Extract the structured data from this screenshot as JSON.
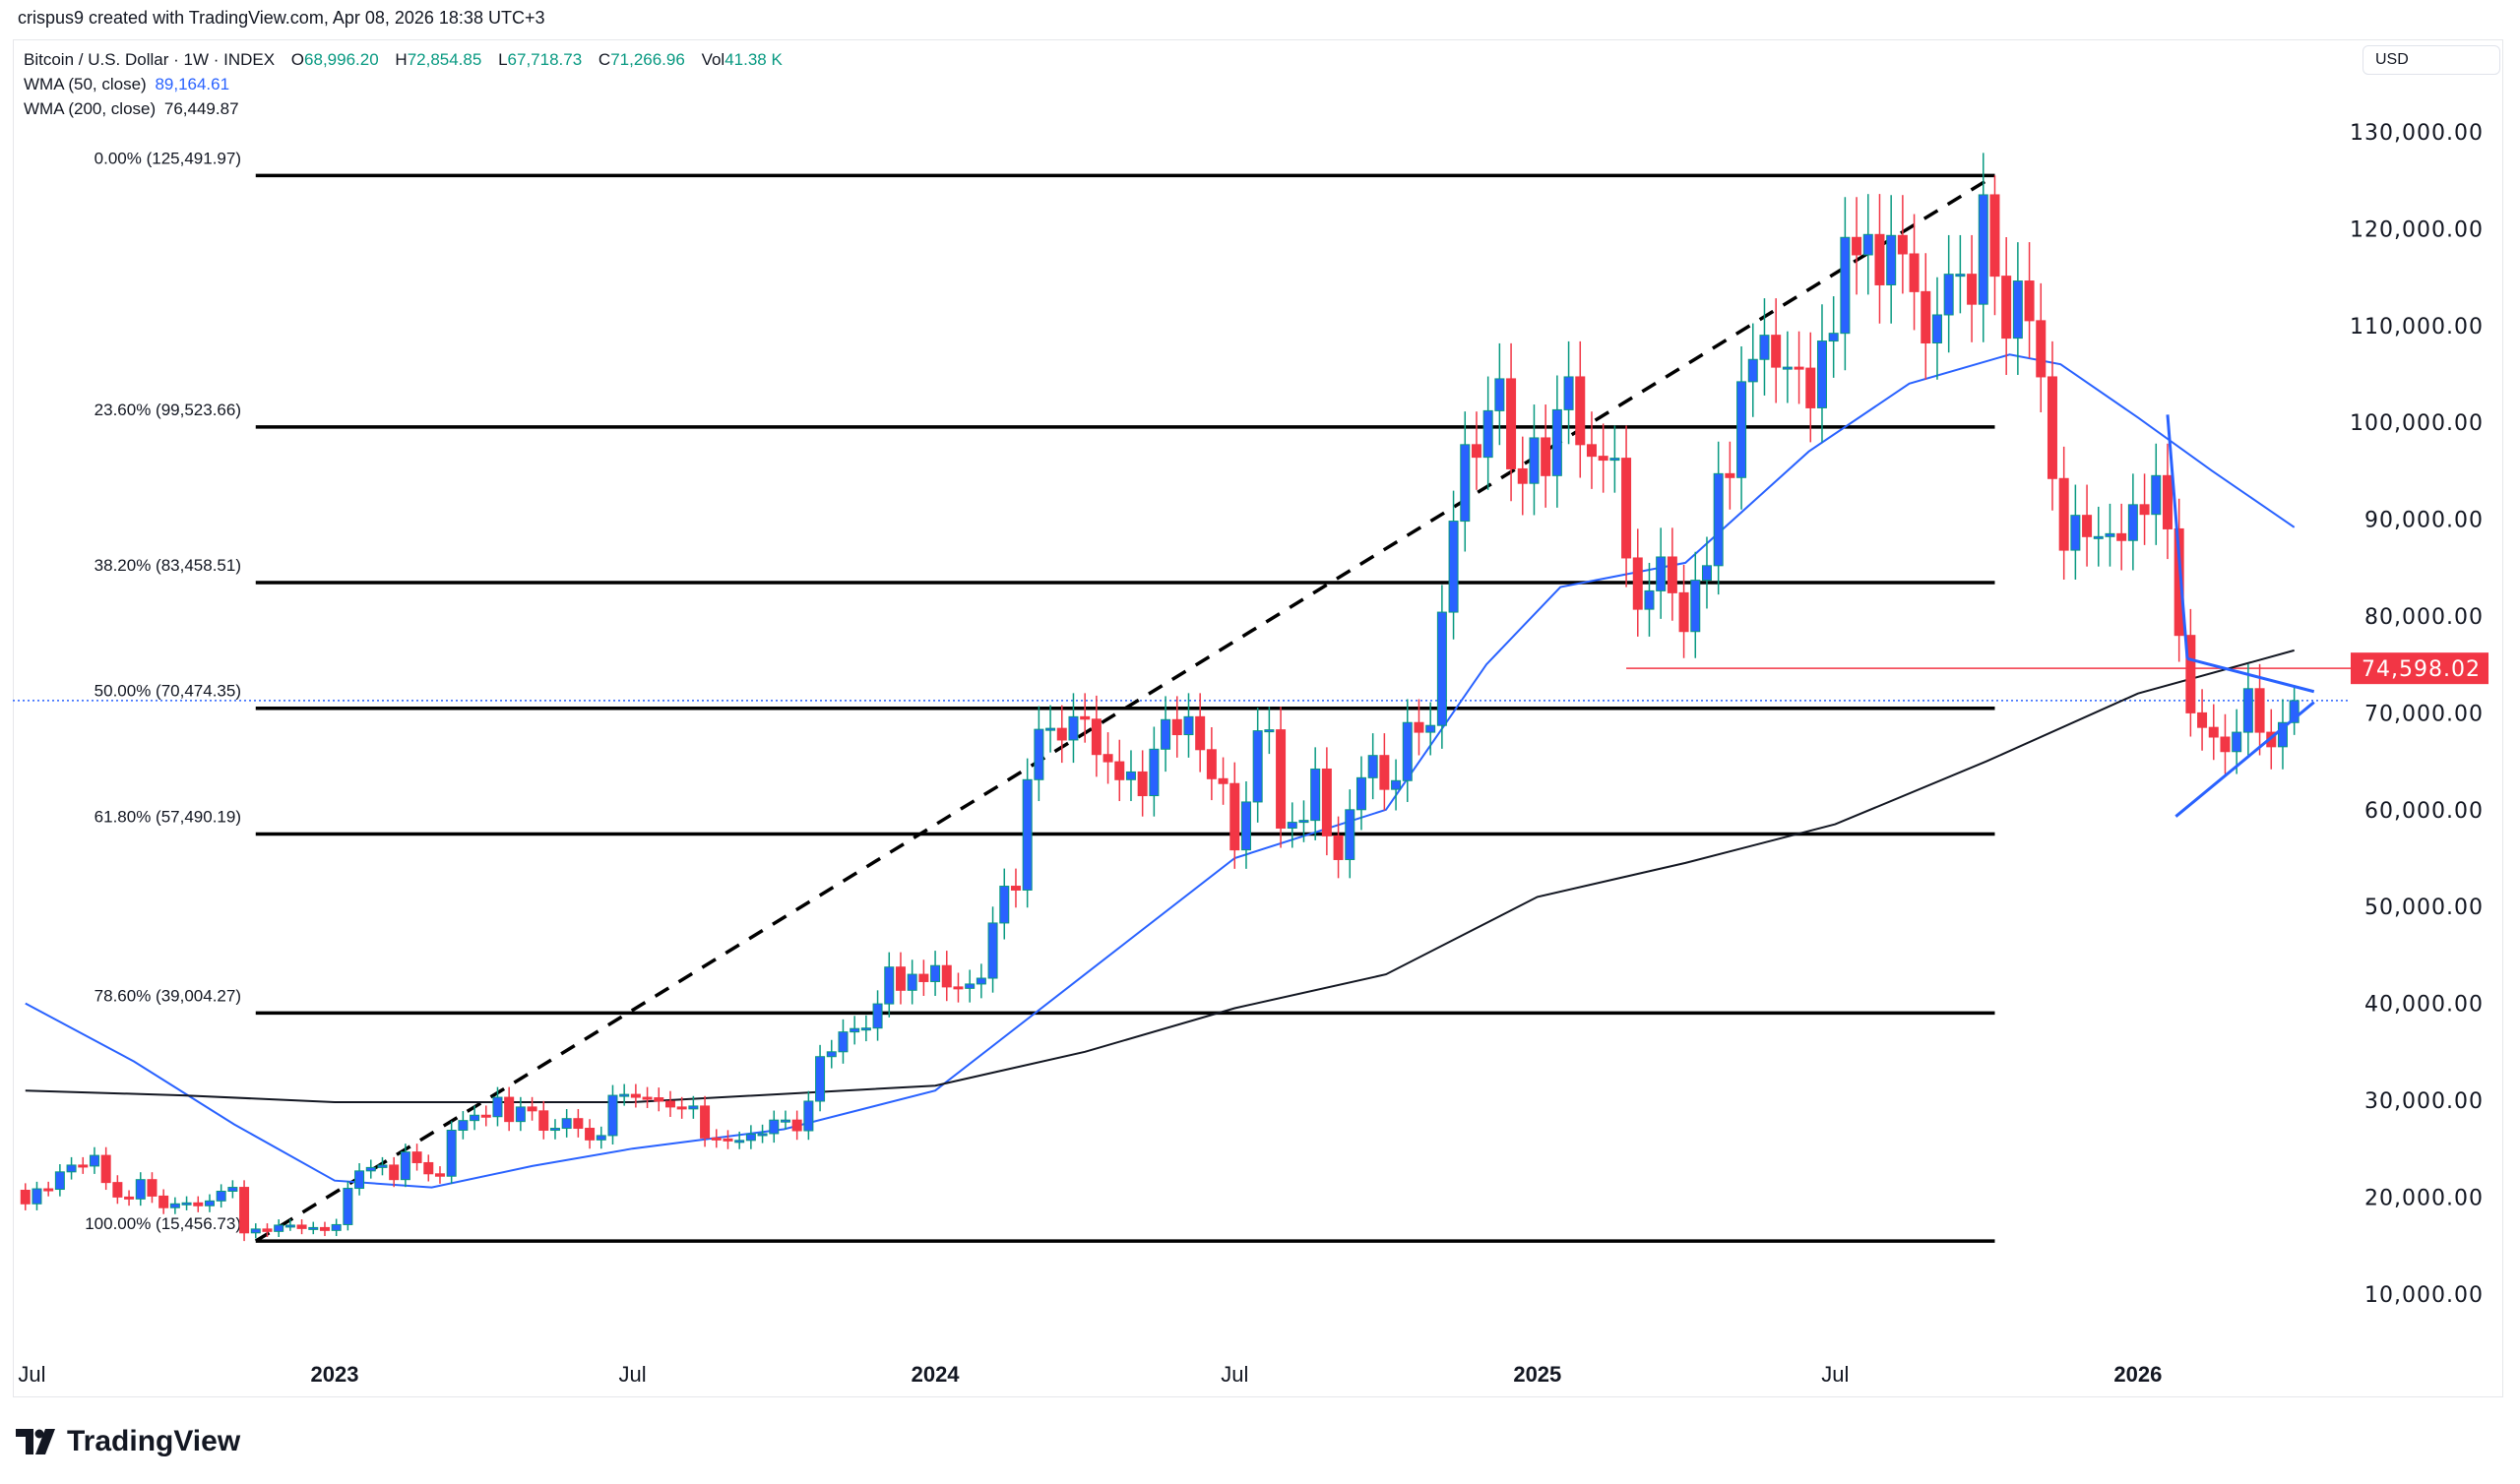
{
  "credit": "crispus9 created with TradingView.com, Apr 08, 2026 18:38 UTC+3",
  "legend": {
    "symbol": "Bitcoin / U.S. Dollar · 1W · INDEX",
    "o_label": "O",
    "o": "68,996.20",
    "h_label": "H",
    "h": "72,854.85",
    "l_label": "L",
    "l": "67,718.73",
    "c_label": "C",
    "c": "71,266.96",
    "vol_label": "Vol",
    "vol": "41.38 K",
    "wma50_label": "WMA (50, close)",
    "wma50": "89,164.61",
    "wma200_label": "WMA (200, close)",
    "wma200": "76,449.87"
  },
  "currency": "USD",
  "logo_text": "TradingView",
  "colors": {
    "up_body": "#2962ff",
    "up_wick": "#089981",
    "down": "#f23645",
    "legend_value": "#089981",
    "wma50": "#2962ff",
    "wma200": "#131722",
    "level": "#f23645"
  },
  "chart_data": {
    "type": "candlestick",
    "title": "Bitcoin / U.S. Dollar · 1W · INDEX",
    "ylim": [
      0,
      135000
    ],
    "y_ticks": [
      130000,
      120000,
      110000,
      100000,
      90000,
      80000,
      70000,
      60000,
      50000,
      40000,
      30000,
      20000,
      10000
    ],
    "y_tick_labels": [
      "130,000.00",
      "120,000.00",
      "110,000.00",
      "100,000.00",
      "90,000.00",
      "80,000.00",
      "70,000.00",
      "60,000.00",
      "50,000.00",
      "40,000.00",
      "30,000.00",
      "20,000.00",
      "10,000.00"
    ],
    "x_ticks": [
      {
        "date": "2022-07-01",
        "label": "Jul",
        "bold": false
      },
      {
        "date": "2023-01-01",
        "label": "2023",
        "bold": true
      },
      {
        "date": "2023-07-01",
        "label": "Jul",
        "bold": false
      },
      {
        "date": "2024-01-01",
        "label": "2024",
        "bold": true
      },
      {
        "date": "2024-07-01",
        "label": "Jul",
        "bold": false
      },
      {
        "date": "2025-01-01",
        "label": "2025",
        "bold": true
      },
      {
        "date": "2025-07-01",
        "label": "Jul",
        "bold": false
      },
      {
        "date": "2026-01-01",
        "label": "2026",
        "bold": true
      }
    ],
    "start_week": "2022-06-27",
    "first_open": 20700,
    "closes": [
      19300,
      20850,
      20800,
      22600,
      23300,
      23200,
      24300,
      21500,
      20000,
      19800,
      21800,
      20100,
      18900,
      19300,
      19400,
      19100,
      19600,
      20600,
      21000,
      16300,
      16700,
      16450,
      17100,
      17100,
      16750,
      16850,
      16550,
      17150,
      20900,
      22700,
      23050,
      23300,
      21800,
      24650,
      23550,
      22400,
      22150,
      26900,
      27900,
      28450,
      28300,
      30300,
      27800,
      29300,
      28900,
      26900,
      27100,
      28100,
      27100,
      25900,
      26350,
      30500,
      30600,
      30300,
      30250,
      29900,
      29300,
      29100,
      29400,
      26100,
      26000,
      25850,
      25850,
      26500,
      26550,
      27950,
      27950,
      26850,
      29900,
      34500,
      35000,
      37050,
      37400,
      37450,
      39950,
      43750,
      41350,
      43000,
      42250,
      43900,
      41700,
      41550,
      42000,
      42600,
      48300,
      52100,
      51700,
      63100,
      68300,
      68400,
      67200,
      69600,
      69350,
      65700,
      64950,
      63100,
      63900,
      61450,
      66250,
      69300,
      67750,
      69600,
      66200,
      63200,
      62700,
      55850,
      60800,
      68150,
      68250,
      58100,
      58700,
      58900,
      64200,
      57300,
      54850,
      60000,
      63300,
      65600,
      62100,
      63000,
      69000,
      68000,
      68700,
      80400,
      89800,
      97700,
      96400,
      101200,
      104500,
      95200,
      93700,
      98400,
      94500,
      101300,
      104700,
      97700,
      96500,
      96100,
      96300,
      86000,
      80700,
      82600,
      86100,
      82400,
      78400,
      83700,
      85200,
      94700,
      94300,
      104200,
      106500,
      109000,
      105700,
      105700,
      105600,
      101500,
      108400,
      109200,
      119100,
      117300,
      119400,
      114200,
      119300,
      117400,
      113500,
      108200,
      111100,
      115300,
      115300,
      112200,
      123500,
      115100,
      108700,
      114600,
      110500,
      104700,
      94200,
      86800,
      90400,
      88200,
      88200,
      88500,
      87800,
      91500,
      90500,
      94500,
      89000,
      78000,
      70000,
      68500,
      67500,
      66000,
      68000,
      72500,
      68000,
      66500,
      68996.2,
      71266.96
    ],
    "wick_pct": 0.035,
    "extremes": [
      {
        "week": "2022-11-07",
        "low": 15456.73
      },
      {
        "week": "2025-10-06",
        "high": 125491.97
      },
      {
        "week": "2026-04-06",
        "high": 72854.85,
        "low": 67718.73
      }
    ],
    "series": [
      {
        "name": "WMA (50, close)",
        "points": [
          [
            "2022-06-27",
            40000
          ],
          [
            "2022-09-01",
            34000
          ],
          [
            "2022-11-01",
            27500
          ],
          [
            "2023-01-01",
            21700
          ],
          [
            "2023-03-01",
            21000
          ],
          [
            "2023-05-01",
            23200
          ],
          [
            "2023-07-01",
            25000
          ],
          [
            "2023-10-01",
            27000
          ],
          [
            "2024-01-01",
            31000
          ],
          [
            "2024-04-01",
            43000
          ],
          [
            "2024-07-01",
            55000
          ],
          [
            "2024-10-01",
            60000
          ],
          [
            "2024-12-01",
            75000
          ],
          [
            "2025-01-15",
            83000
          ],
          [
            "2025-04-01",
            85500
          ],
          [
            "2025-06-15",
            97000
          ],
          [
            "2025-08-15",
            104000
          ],
          [
            "2025-10-15",
            107000
          ],
          [
            "2025-11-15",
            106000
          ],
          [
            "2026-01-01",
            100500
          ],
          [
            "2026-02-15",
            95000
          ],
          [
            "2026-04-06",
            89164.61
          ]
        ]
      },
      {
        "name": "WMA (200, close)",
        "points": [
          [
            "2022-06-27",
            31000
          ],
          [
            "2022-10-01",
            30500
          ],
          [
            "2023-01-01",
            29800
          ],
          [
            "2023-07-01",
            29800
          ],
          [
            "2024-01-01",
            31500
          ],
          [
            "2024-04-01",
            35000
          ],
          [
            "2024-07-01",
            39500
          ],
          [
            "2024-10-01",
            43000
          ],
          [
            "2025-01-01",
            51000
          ],
          [
            "2025-04-01",
            54500
          ],
          [
            "2025-07-01",
            58500
          ],
          [
            "2025-10-01",
            65000
          ],
          [
            "2026-01-01",
            72000
          ],
          [
            "2026-04-06",
            76449.87
          ]
        ]
      }
    ],
    "fibonacci": {
      "from_date": "2022-11-14",
      "to_date": "2025-10-06",
      "levels": [
        {
          "label": "0.00% (125,491.97)",
          "price": 125491.97
        },
        {
          "label": "23.60% (99,523.66)",
          "price": 99523.66
        },
        {
          "label": "38.20% (83,458.51)",
          "price": 83458.51
        },
        {
          "label": "50.00% (70,474.35)",
          "price": 70474.35
        },
        {
          "label": "61.80% (57,490.19)",
          "price": 57490.19
        },
        {
          "label": "78.60% (39,004.27)",
          "price": 39004.27
        },
        {
          "label": "100.00% (15,456.73)",
          "price": 15456.73
        }
      ]
    },
    "trendline": [
      [
        "2022-11-14",
        15456.73
      ],
      [
        "2025-10-06",
        125491.97
      ]
    ],
    "level_line": {
      "from": "2025-02-24",
      "price": 74598.02,
      "label": "74,598.02"
    },
    "last_price": 71266.96,
    "triangle": {
      "drop": [
        [
          "2026-01-19",
          100800
        ],
        [
          "2026-01-31",
          75600
        ]
      ],
      "upper": [
        [
          "2026-01-31",
          75600
        ],
        [
          "2026-04-18",
          72200
        ]
      ],
      "lower": [
        [
          "2026-01-24",
          59300
        ],
        [
          "2026-04-18",
          71100
        ]
      ]
    }
  }
}
